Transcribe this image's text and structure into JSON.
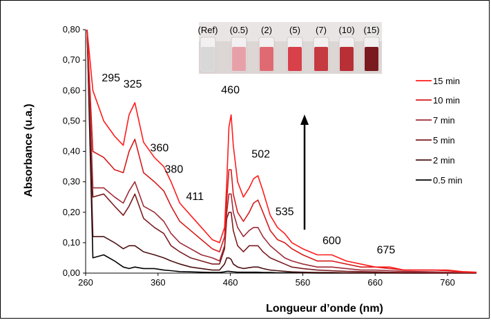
{
  "chart_data": {
    "type": "line",
    "title": "",
    "xlabel": "Longueur d’onde (nm)",
    "ylabel": "Absorbance (u.a.)",
    "xlim": [
      260,
      800
    ],
    "ylim": [
      0,
      0.8
    ],
    "x_ticks": [
      "260",
      "360",
      "460",
      "560",
      "660",
      "760"
    ],
    "y_ticks": [
      "0,00",
      "0,10",
      "0,20",
      "0,30",
      "0,40",
      "0,50",
      "0,60",
      "0,70",
      "0,80"
    ],
    "legend_position": "right",
    "series": [
      {
        "name": "15 min",
        "color": "#ff1a1a",
        "x": [
          262,
          270,
          285,
          300,
          312,
          320,
          328,
          340,
          355,
          368,
          378,
          390,
          405,
          420,
          435,
          445,
          452,
          455,
          458,
          461,
          464,
          470,
          478,
          486,
          492,
          498,
          505,
          515,
          525,
          535,
          545,
          560,
          580,
          600,
          620,
          640,
          660,
          680,
          700,
          720,
          740,
          760,
          780,
          800
        ],
        "y": [
          0.8,
          0.6,
          0.5,
          0.45,
          0.42,
          0.52,
          0.56,
          0.43,
          0.38,
          0.35,
          0.3,
          0.23,
          0.19,
          0.15,
          0.11,
          0.1,
          0.15,
          0.3,
          0.48,
          0.52,
          0.42,
          0.3,
          0.25,
          0.28,
          0.31,
          0.32,
          0.27,
          0.19,
          0.15,
          0.13,
          0.1,
          0.08,
          0.06,
          0.06,
          0.04,
          0.03,
          0.02,
          0.02,
          0.01,
          0.01,
          0.01,
          0.01,
          0.005,
          0.003
        ]
      },
      {
        "name": "10 min",
        "color": "#d41a1a",
        "x": [
          262,
          270,
          285,
          300,
          312,
          320,
          328,
          340,
          355,
          368,
          378,
          390,
          405,
          420,
          435,
          445,
          452,
          455,
          458,
          461,
          464,
          470,
          478,
          486,
          492,
          498,
          505,
          515,
          525,
          535,
          545,
          560,
          580,
          600,
          620,
          640,
          660,
          680,
          700,
          720,
          740,
          760,
          780,
          800
        ],
        "y": [
          0.8,
          0.4,
          0.38,
          0.34,
          0.33,
          0.4,
          0.44,
          0.33,
          0.3,
          0.27,
          0.22,
          0.17,
          0.14,
          0.11,
          0.08,
          0.07,
          0.12,
          0.24,
          0.34,
          0.34,
          0.26,
          0.2,
          0.17,
          0.2,
          0.23,
          0.24,
          0.2,
          0.14,
          0.11,
          0.1,
          0.08,
          0.06,
          0.04,
          0.04,
          0.03,
          0.02,
          0.02,
          0.015,
          0.01,
          0.01,
          0.01,
          0.008,
          0.004,
          0.002
        ]
      },
      {
        "name": "7 min",
        "color": "#9e2a35",
        "x": [
          262,
          270,
          285,
          300,
          312,
          320,
          328,
          340,
          355,
          368,
          378,
          390,
          405,
          420,
          435,
          445,
          452,
          455,
          458,
          461,
          464,
          470,
          478,
          486,
          492,
          498,
          505,
          515,
          525,
          535,
          545,
          560,
          580,
          600,
          620,
          640,
          660,
          680,
          700,
          720,
          740,
          760,
          780,
          800
        ],
        "y": [
          0.8,
          0.28,
          0.28,
          0.25,
          0.23,
          0.27,
          0.3,
          0.22,
          0.2,
          0.17,
          0.13,
          0.1,
          0.08,
          0.06,
          0.05,
          0.04,
          0.09,
          0.2,
          0.26,
          0.26,
          0.2,
          0.15,
          0.12,
          0.14,
          0.15,
          0.15,
          0.12,
          0.09,
          0.07,
          0.05,
          0.04,
          0.03,
          0.02,
          0.02,
          0.015,
          0.01,
          0.01,
          0.008,
          0.006,
          0.005,
          0.004,
          0.003,
          0.002,
          0.001
        ]
      },
      {
        "name": "5 min",
        "color": "#7a1a1f",
        "x": [
          262,
          270,
          285,
          300,
          312,
          320,
          328,
          340,
          355,
          368,
          378,
          390,
          405,
          420,
          435,
          445,
          452,
          455,
          458,
          461,
          464,
          470,
          478,
          486,
          492,
          498,
          505,
          515,
          525,
          535,
          545,
          560,
          580,
          600,
          620,
          640,
          660,
          680,
          700,
          720,
          740,
          760,
          780,
          800
        ],
        "y": [
          0.8,
          0.25,
          0.26,
          0.22,
          0.19,
          0.22,
          0.26,
          0.18,
          0.15,
          0.13,
          0.09,
          0.07,
          0.05,
          0.04,
          0.03,
          0.03,
          0.08,
          0.18,
          0.2,
          0.2,
          0.14,
          0.09,
          0.07,
          0.09,
          0.09,
          0.09,
          0.07,
          0.05,
          0.04,
          0.03,
          0.02,
          0.015,
          0.01,
          0.008,
          0.006,
          0.005,
          0.004,
          0.003,
          0.002,
          0.002,
          0.001,
          0.001,
          0.001,
          0.0
        ]
      },
      {
        "name": "2 min",
        "color": "#4a1010",
        "x": [
          262,
          270,
          285,
          300,
          312,
          320,
          328,
          340,
          355,
          368,
          378,
          390,
          405,
          420,
          435,
          445,
          452,
          455,
          458,
          461,
          464,
          470,
          478,
          486,
          492,
          498,
          505,
          515,
          525,
          535,
          545,
          560,
          580,
          600,
          620,
          640,
          660,
          680,
          700,
          720,
          740,
          760,
          780,
          800
        ],
        "y": [
          0.8,
          0.12,
          0.12,
          0.1,
          0.08,
          0.09,
          0.09,
          0.07,
          0.06,
          0.05,
          0.04,
          0.03,
          0.02,
          0.015,
          0.01,
          0.01,
          0.03,
          0.05,
          0.05,
          0.045,
          0.03,
          0.02,
          0.015,
          0.018,
          0.02,
          0.02,
          0.015,
          0.01,
          0.008,
          0.006,
          0.004,
          0.003,
          0.002,
          0.002,
          0.001,
          0.001,
          0.001,
          0.001,
          0.0,
          0.0,
          0.0,
          0.0,
          0.0,
          0.0
        ]
      },
      {
        "name": "0.5 min",
        "color": "#000000",
        "x": [
          262,
          270,
          285,
          300,
          312,
          320,
          328,
          340,
          355,
          368,
          378,
          390,
          405,
          420,
          435,
          445,
          452,
          455,
          458,
          461,
          464,
          470,
          478,
          486,
          492,
          498,
          505,
          515,
          525,
          535,
          545,
          560,
          580,
          600,
          620,
          640,
          660,
          680,
          700,
          720,
          740,
          760,
          780,
          800
        ],
        "y": [
          0.8,
          0.05,
          0.06,
          0.04,
          0.02,
          0.015,
          0.02,
          0.015,
          0.015,
          0.01,
          0.008,
          0.005,
          0.004,
          0.003,
          0.002,
          0.002,
          0.004,
          0.006,
          0.006,
          0.005,
          0.004,
          0.003,
          0.003,
          0.003,
          0.003,
          0.003,
          0.002,
          0.002,
          0.001,
          0.001,
          0.001,
          0.001,
          0.0,
          0.0,
          0.0,
          0.0,
          0.0,
          0.0,
          0.0,
          0.0,
          0.0,
          0.0,
          0.0,
          0.0
        ]
      }
    ],
    "annotations": [
      {
        "text": "295",
        "x": 295,
        "y": 0.63
      },
      {
        "text": "325",
        "x": 325,
        "y": 0.61
      },
      {
        "text": "360",
        "x": 362,
        "y": 0.4
      },
      {
        "text": "380",
        "x": 382,
        "y": 0.33
      },
      {
        "text": "411",
        "x": 411,
        "y": 0.24
      },
      {
        "text": "460",
        "x": 460,
        "y": 0.59
      },
      {
        "text": "502",
        "x": 502,
        "y": 0.38
      },
      {
        "text": "535",
        "x": 535,
        "y": 0.19
      },
      {
        "text": "600",
        "x": 600,
        "y": 0.095
      },
      {
        "text": "675",
        "x": 675,
        "y": 0.065
      }
    ],
    "inset_labels": [
      "(Ref)",
      "(0.5)",
      "(2)",
      "(5)",
      "(7)",
      "(10)",
      "(15)"
    ],
    "inset_vial_colors": [
      "#d8d8d8",
      "#e8a0a8",
      "#e06a72",
      "#d8404a",
      "#c53a40",
      "#b83035",
      "#7a1a20"
    ]
  }
}
